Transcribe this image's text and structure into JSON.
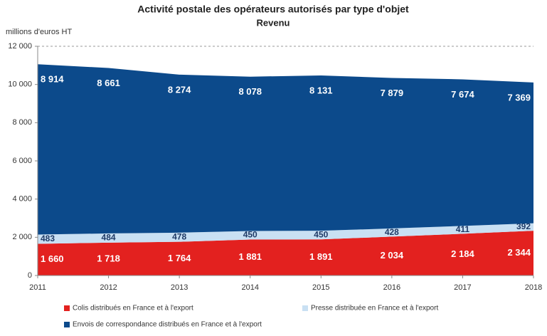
{
  "chart_data": {
    "type": "stacked-area",
    "title": "Activité postale des opérateurs autorisés par type d'objet",
    "subtitle": "Revenu",
    "y_label": "millions d'euros HT",
    "x": [
      2011,
      2012,
      2013,
      2014,
      2015,
      2016,
      2017,
      2018
    ],
    "xlim": [
      2011,
      2018
    ],
    "ylim": [
      0,
      12000
    ],
    "yticks": [
      0,
      {
        "value": 2000,
        "label": "2 000"
      },
      {
        "value": 4000,
        "label": "4 000"
      },
      {
        "value": 6000,
        "label": "6 000"
      },
      {
        "value": 8000,
        "label": "8 000"
      },
      {
        "value": 10000,
        "label": "10 000"
      },
      {
        "value": 12000,
        "label": "12 000"
      }
    ],
    "series": [
      {
        "name": "Colis distribués en France et à l'export",
        "color": "#e3211f",
        "values": [
          1660,
          1718,
          1764,
          1881,
          1891,
          2034,
          2184,
          2344
        ],
        "value_labels": [
          "1 660",
          "1 718",
          "1 764",
          "1 881",
          "1 891",
          "2 034",
          "2 184",
          "2 344"
        ]
      },
      {
        "name": "Presse distribuée en France et à l'export",
        "color": "#c9e0f3",
        "values": [
          483,
          484,
          478,
          450,
          450,
          428,
          411,
          392
        ]
      },
      {
        "name": "Envois de correspondance distribués en France et à l'export",
        "color": "#0c4a8b",
        "values": [
          8914,
          8661,
          8274,
          8078,
          8131,
          7879,
          7674,
          7369
        ],
        "value_labels": [
          "8 914",
          "8 661",
          "8 274",
          "8 078",
          "8 131",
          "7 879",
          "7 674",
          "7 369"
        ]
      }
    ]
  }
}
